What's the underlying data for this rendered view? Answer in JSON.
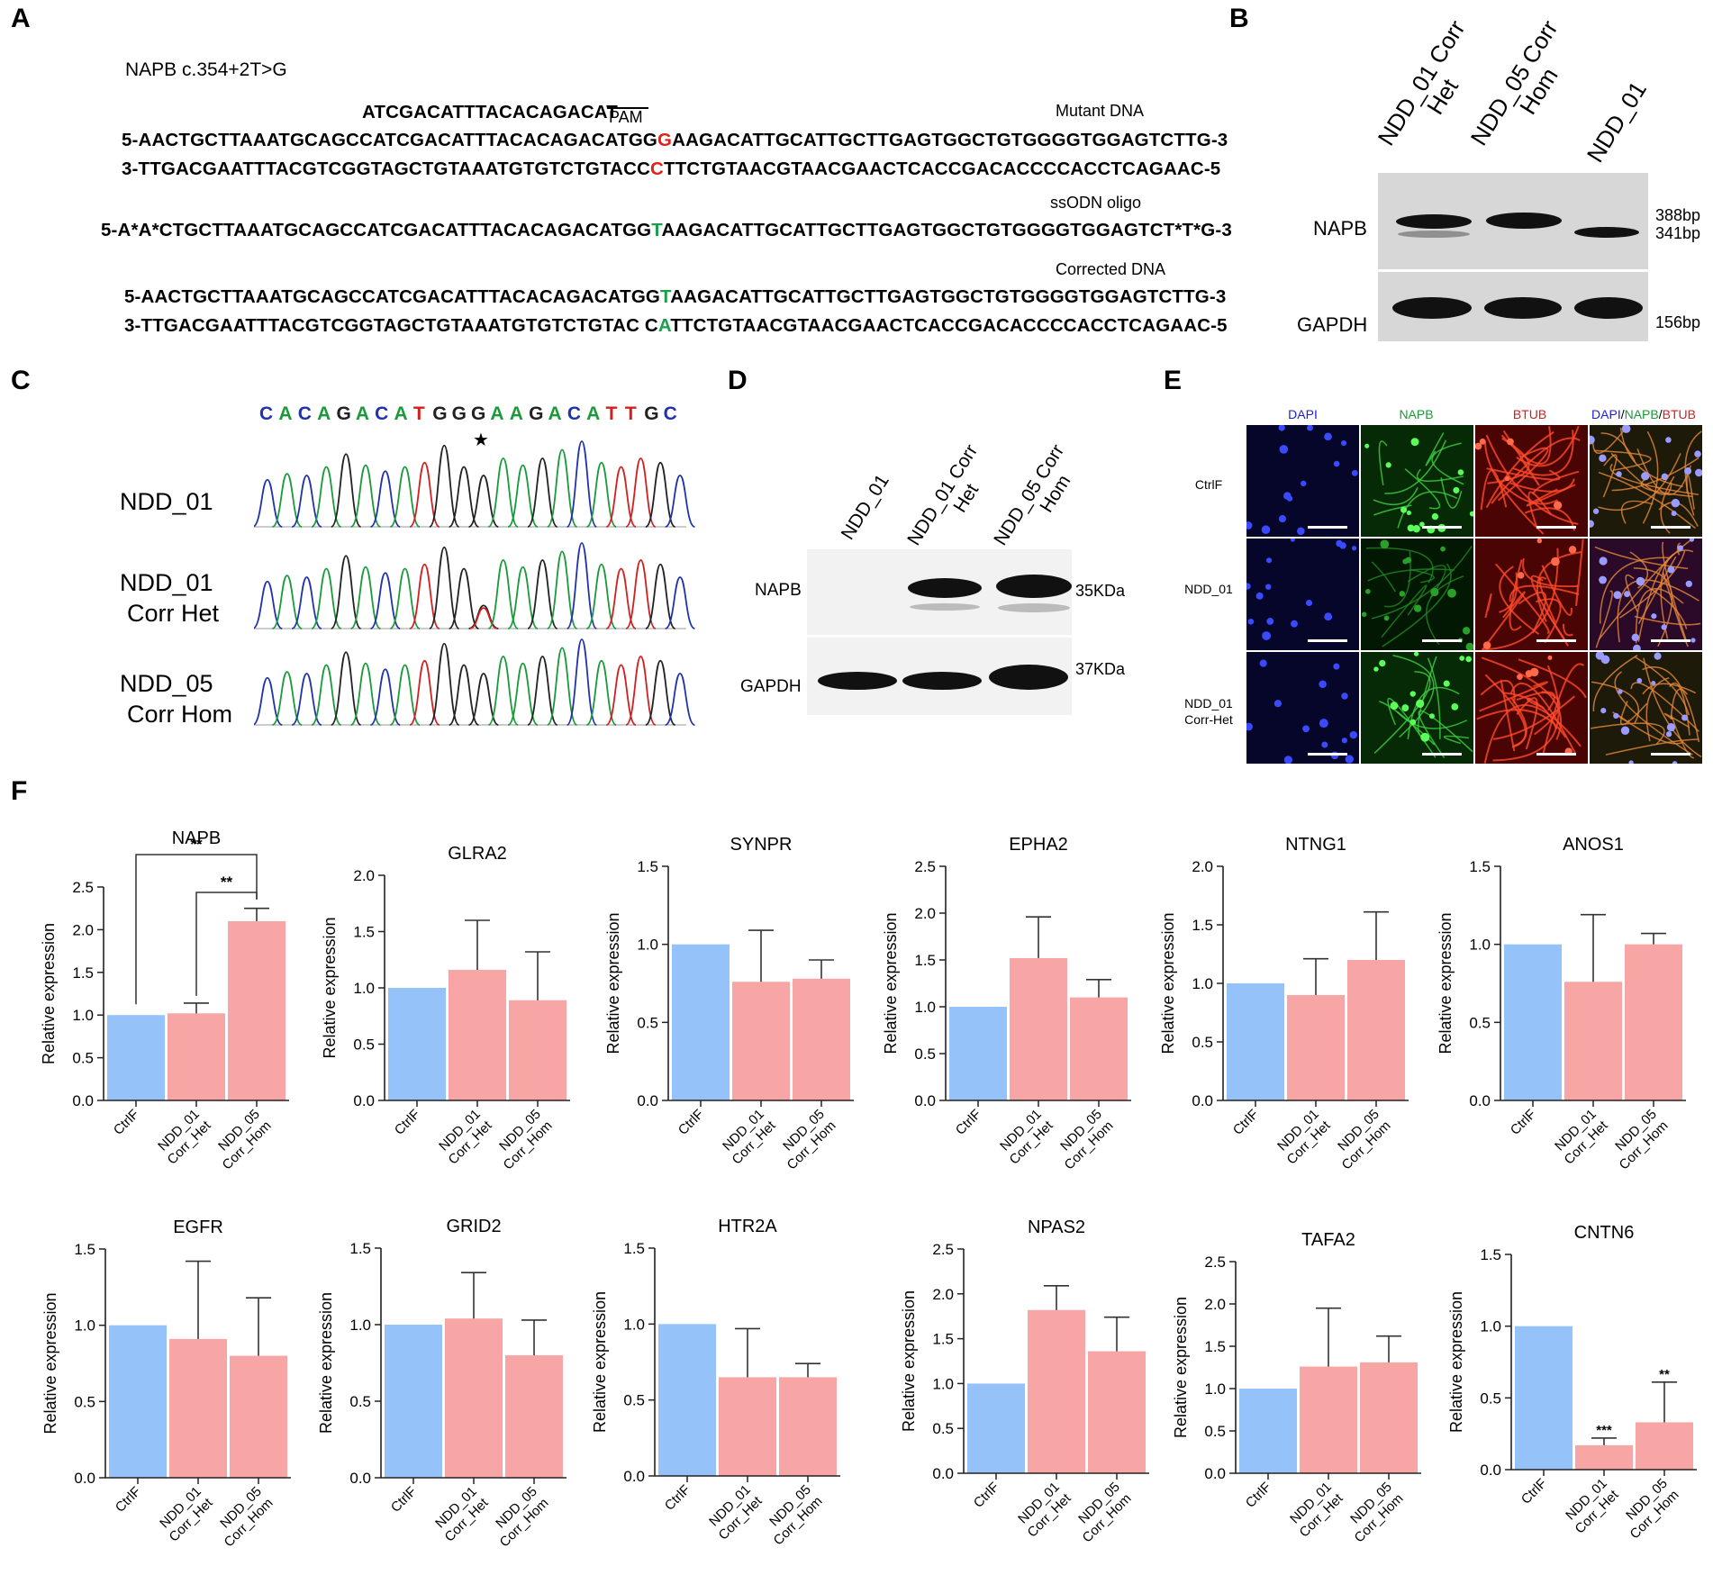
{
  "panels": {
    "A": {
      "label": "A",
      "title": "NAPB c.354+2T>G",
      "guide_seq": "ATCGACATTTACACAGACAT",
      "pam_label": "PAM",
      "mutant_label": "Mutant DNA",
      "mutant_top": {
        "pre": "5-AACTGCTTAAATGCAGCCATCGACATTTACACAGACATGG",
        "hl": "G",
        "post": "AAGACATTGCATTGCTTGAGTGGCTGTGGGGTGGAGTCTTG-3"
      },
      "mutant_bottom": {
        "pre": "3-TTGACGAATTTACGTCGGTAGCTGTAAATGTGTCTGTACC",
        "hl": "C",
        "post": "TTCTGTAACGTAACGAACTCACCGACACCCCACCTCAGAAC-5"
      },
      "ssodn_label": "ssODN oligo",
      "ssodn": {
        "pre": "5-A*A*CTGCTTAAATGCAGCCATCGACATTTACACAGACATGG",
        "hl": "T",
        "post": "AAGACATTGCATTGCTTGAGTGGCTGTGGGGTGGAGTCT*T*G-3"
      },
      "corrected_label": "Corrected DNA",
      "corrected_top": {
        "pre": "5-AACTGCTTAAATGCAGCCATCGACATTTACACAGACATGG",
        "hl": "T",
        "post": "AAGACATTGCATTGCTTGAGTGGCTGTGGGGTGGAGTCTTG-3"
      },
      "corrected_bottom": {
        "pre": "3-TTGACGAATTTACGTCGGTAGCTGTAAATGTGTCTGTAC C",
        "hl": "A",
        "post": "TTCTGTAACGTAACGAACTCACCGACACCCCACCTCAGAAC-5"
      },
      "colors": {
        "mutant": "#e0201b",
        "corrected": "#1aa04a"
      }
    },
    "B": {
      "label": "B",
      "lanes": [
        {
          "line1": "NDD_01 Corr",
          "line2": "Het"
        },
        {
          "line1": "NDD_05 Corr",
          "line2": "Hom"
        },
        {
          "line1": "NDD_01",
          "line2": ""
        }
      ],
      "rows": [
        "NAPB",
        "GAPDH"
      ],
      "sizes": [
        "388bp",
        "341bp",
        "156bp"
      ]
    },
    "C": {
      "label": "C",
      "sequence": [
        {
          "b": "C",
          "c": "#2233aa"
        },
        {
          "b": "A",
          "c": "#1a9a3a"
        },
        {
          "b": "C",
          "c": "#2233aa"
        },
        {
          "b": "A",
          "c": "#1a9a3a"
        },
        {
          "b": "G",
          "c": "#222222"
        },
        {
          "b": "A",
          "c": "#1a9a3a"
        },
        {
          "b": "C",
          "c": "#2233aa"
        },
        {
          "b": "A",
          "c": "#1a9a3a"
        },
        {
          "b": "T",
          "c": "#d22020"
        },
        {
          "b": "G",
          "c": "#222222"
        },
        {
          "b": "G",
          "c": "#222222"
        },
        {
          "b": "G",
          "c": "#222222"
        },
        {
          "b": "A",
          "c": "#1a9a3a"
        },
        {
          "b": "A",
          "c": "#1a9a3a"
        },
        {
          "b": "G",
          "c": "#222222"
        },
        {
          "b": "A",
          "c": "#1a9a3a"
        },
        {
          "b": "C",
          "c": "#2233aa"
        },
        {
          "b": "A",
          "c": "#1a9a3a"
        },
        {
          "b": "T",
          "c": "#d22020"
        },
        {
          "b": "T",
          "c": "#d22020"
        },
        {
          "b": "G",
          "c": "#222222"
        },
        {
          "b": "C",
          "c": "#2233aa"
        }
      ],
      "star": "★",
      "samples": [
        {
          "line1": "NDD_01",
          "line2": ""
        },
        {
          "line1": "NDD_01",
          "line2": "Corr Het"
        },
        {
          "line1": "NDD_05",
          "line2": "Corr Hom"
        }
      ]
    },
    "D": {
      "label": "D",
      "lanes": [
        {
          "line1": "NDD_01",
          "line2": ""
        },
        {
          "line1": "NDD_01 Corr",
          "line2": "Het"
        },
        {
          "line1": "NDD_05 Corr",
          "line2": "Hom"
        }
      ],
      "rows": [
        "NAPB",
        "GAPDH"
      ],
      "sizes": [
        "35KDa",
        "37KDa"
      ]
    },
    "E": {
      "label": "E",
      "columns": [
        "DAPI",
        "NAPB",
        "BTUB"
      ],
      "merge_parts": [
        {
          "t": "DAPI",
          "c": "#2020d0"
        },
        {
          "t": "/",
          "c": "#000000"
        },
        {
          "t": "NAPB",
          "c": "#1a9a3a"
        },
        {
          "t": "/",
          "c": "#000000"
        },
        {
          "t": "BTUB",
          "c": "#d02020"
        }
      ],
      "rows": [
        {
          "line1": "CtrlF",
          "line2": ""
        },
        {
          "line1": "NDD_01",
          "line2": ""
        },
        {
          "line1": "NDD_01",
          "line2": "Corr-Het"
        }
      ],
      "colors": {
        "dapi": "#2020d0",
        "napb": "#1a9a3a",
        "btub": "#d02020"
      }
    },
    "F": {
      "label": "F"
    }
  },
  "chart_data": [
    {
      "type": "bar",
      "title": "NAPB",
      "ylabel": "Relative expression",
      "ylim": [
        0,
        2.5
      ],
      "ticks": [
        "0.0",
        "0.5",
        "1.0",
        "1.5",
        "2.0",
        "2.5"
      ],
      "categories": [
        "CtrlF",
        "NDD_01 Corr_Het",
        "NDD_05 Corr_Hom"
      ],
      "values": [
        1.0,
        1.02,
        2.1
      ],
      "errors": [
        0,
        0.12,
        0.15
      ],
      "sig": [
        {
          "from": 0,
          "to": 2,
          "text": "**"
        },
        {
          "from": 1,
          "to": 2,
          "text": "**"
        }
      ]
    },
    {
      "type": "bar",
      "title": "GLRA2",
      "ylabel": "Relative expression",
      "ylim": [
        0,
        2.0
      ],
      "ticks": [
        "0.0",
        "0.5",
        "1.0",
        "1.5",
        "2.0"
      ],
      "categories": [
        "CtrlF",
        "NDD_01 Corr_Het",
        "NDD_05 Corr_Hom"
      ],
      "values": [
        1.0,
        1.16,
        0.89
      ],
      "errors": [
        0,
        0.44,
        0.43
      ]
    },
    {
      "type": "bar",
      "title": "SYNPR",
      "ylabel": "Relative expression",
      "ylim": [
        0,
        1.5
      ],
      "ticks": [
        "0.0",
        "0.5",
        "1.0",
        "1.5"
      ],
      "categories": [
        "CtrlF",
        "NDD_01 Corr_Het",
        "NDD_05 Corr_Hom"
      ],
      "values": [
        1.0,
        0.76,
        0.78
      ],
      "errors": [
        0,
        0.33,
        0.12
      ]
    },
    {
      "type": "bar",
      "title": "EPHA2",
      "ylabel": "Relative expression",
      "ylim": [
        0,
        2.5
      ],
      "ticks": [
        "0.0",
        "0.5",
        "1.0",
        "1.5",
        "2.0",
        "2.5"
      ],
      "categories": [
        "CtrlF",
        "NDD_01 Corr_Het",
        "NDD_05 Corr_Hom"
      ],
      "values": [
        1.0,
        1.52,
        1.1
      ],
      "errors": [
        0,
        0.44,
        0.19
      ]
    },
    {
      "type": "bar",
      "title": "NTNG1",
      "ylabel": "Relative expression",
      "ylim": [
        0,
        2.0
      ],
      "ticks": [
        "0.0",
        "0.5",
        "1.0",
        "1.5",
        "2.0"
      ],
      "categories": [
        "CtrlF",
        "NDD_01 Corr_Het",
        "NDD_05 Corr_Hom"
      ],
      "values": [
        1.0,
        0.9,
        1.2
      ],
      "errors": [
        0,
        0.31,
        0.41
      ]
    },
    {
      "type": "bar",
      "title": "ANOS1",
      "ylabel": "Relative expression",
      "ylim": [
        0,
        1.5
      ],
      "ticks": [
        "0.0",
        "0.5",
        "1.0",
        "1.5"
      ],
      "categories": [
        "CtrlF",
        "NDD_01 Corr_Het",
        "NDD_05 Corr_Hom"
      ],
      "values": [
        1.0,
        0.76,
        1.0
      ],
      "errors": [
        0,
        0.43,
        0.07
      ]
    },
    {
      "type": "bar",
      "title": "EGFR",
      "ylabel": "Relative expression",
      "ylim": [
        0,
        1.5
      ],
      "ticks": [
        "0.0",
        "0.5",
        "1.0",
        "1.5"
      ],
      "categories": [
        "CtrlF",
        "NDD_01 Corr_Het",
        "NDD_05 Corr_Hom"
      ],
      "values": [
        1.0,
        0.91,
        0.8
      ],
      "errors": [
        0,
        0.51,
        0.38
      ]
    },
    {
      "type": "bar",
      "title": "GRID2",
      "ylabel": "Relative expression",
      "ylim": [
        0,
        1.5
      ],
      "ticks": [
        "0.0",
        "0.5",
        "1.0",
        "1.5"
      ],
      "categories": [
        "CtrlF",
        "NDD_01 Corr_Het",
        "NDD_05 Corr_Hom"
      ],
      "values": [
        1.0,
        1.04,
        0.8
      ],
      "errors": [
        0,
        0.3,
        0.23
      ]
    },
    {
      "type": "bar",
      "title": "HTR2A",
      "ylabel": "Relative expression",
      "ylim": [
        0,
        1.5
      ],
      "ticks": [
        "0.0",
        "0.5",
        "1.0",
        "1.5"
      ],
      "categories": [
        "CtrlF",
        "NDD_01 Corr_Het",
        "NDD_05 Corr_Hom"
      ],
      "values": [
        1.0,
        0.65,
        0.65
      ],
      "errors": [
        0,
        0.32,
        0.09
      ]
    },
    {
      "type": "bar",
      "title": "NPAS2",
      "ylabel": "Relative expression",
      "ylim": [
        0,
        2.5
      ],
      "ticks": [
        "0.0",
        "0.5",
        "1.0",
        "1.5",
        "2.0",
        "2.5"
      ],
      "categories": [
        "CtrlF",
        "NDD_01 Corr_Het",
        "NDD_05 Corr_Hom"
      ],
      "values": [
        1.0,
        1.82,
        1.36
      ],
      "errors": [
        0,
        0.27,
        0.38
      ]
    },
    {
      "type": "bar",
      "title": "TAFA2",
      "ylabel": "Relative expression",
      "ylim": [
        0,
        2.5
      ],
      "ticks": [
        "0.0",
        "0.5",
        "1.0",
        "1.5",
        "2.0",
        "2.5"
      ],
      "categories": [
        "CtrlF",
        "NDD_01 Corr_Het",
        "NDD_05 Corr_Hom"
      ],
      "values": [
        1.0,
        1.26,
        1.31
      ],
      "errors": [
        0,
        0.69,
        0.31
      ]
    },
    {
      "type": "bar",
      "title": "CNTN6",
      "ylabel": "Relative expression",
      "ylim": [
        0,
        1.5
      ],
      "ticks": [
        "0.0",
        "0.5",
        "1.0",
        "1.5"
      ],
      "categories": [
        "CtrlF",
        "NDD_01 Corr_Het",
        "NDD_05 Corr_Hom"
      ],
      "values": [
        1.0,
        0.17,
        0.33
      ],
      "errors": [
        0,
        0.05,
        0.28
      ],
      "stars": [
        "",
        "***",
        "**"
      ]
    }
  ],
  "colors": {
    "ctrl": "#95c3f9",
    "corr": "#f7a5a5",
    "axis": "#222222"
  }
}
